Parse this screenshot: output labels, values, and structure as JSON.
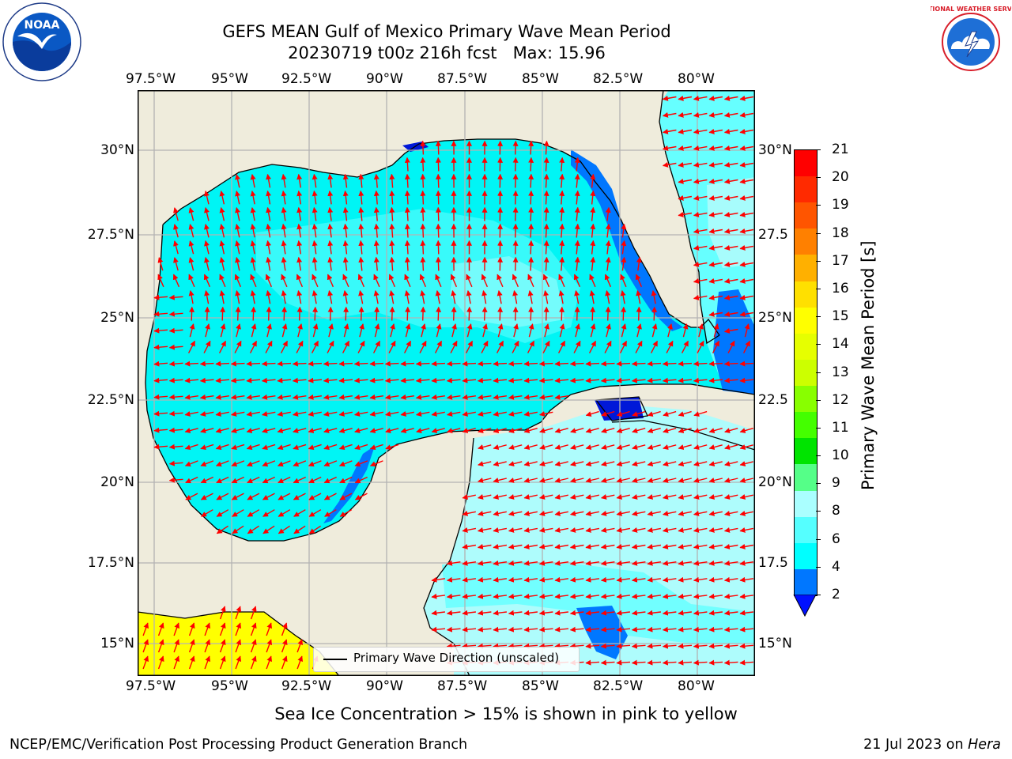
{
  "header": {
    "title_line1": "GEFS MEAN Gulf of Mexico Primary Wave Mean Period",
    "title_line2": "20230719 t00z 216h fcst   Max: 15.96"
  },
  "logos": {
    "left": {
      "name": "NOAA",
      "ring_text": "NATIONAL OCEANIC AND ATMOSPHERIC ADMINISTRATION · U.S. DEPARTMENT OF COMMERCE",
      "icon": "noaa-logo"
    },
    "right": {
      "ring_text": "NATIONAL WEATHER SERVICE",
      "icon": "nws-logo"
    }
  },
  "map": {
    "lon_ticks": [
      "97.5°W",
      "95°W",
      "92.5°W",
      "90°W",
      "87.5°W",
      "85°W",
      "82.5°W",
      "80°W"
    ],
    "lat_ticks_left": [
      "30°N",
      "27.5°N",
      "25°N",
      "22.5°N",
      "20°N",
      "17.5°N",
      "15°N"
    ],
    "lat_ticks_right": [
      "30°N",
      "27.5",
      "25°N",
      "22.5",
      "20°N",
      "17.5",
      "15°N"
    ],
    "legend_label": "Primary Wave Direction (unscaled)",
    "colors": {
      "land": "#efecdc",
      "ocean_mid": "#00f5f5",
      "ocean_light": "#66ffff",
      "ocean_pale": "#aefcfc",
      "ocean_dark": "#0077ff",
      "ocean_navy": "#0018d8",
      "ice": "#ffff00",
      "arrow": "#ff0000",
      "grid": "#b3b3b3"
    }
  },
  "colorbar": {
    "label": "Primary Wave Mean Period [s]",
    "tick_labels": [
      "21",
      "20",
      "19",
      "18",
      "17",
      "16",
      "15",
      "14",
      "13",
      "12",
      "11",
      "10",
      "9",
      "8",
      "6",
      "4",
      "2"
    ],
    "colors_top_to_bottom": [
      "#ff0000",
      "#ff2a00",
      "#ff5500",
      "#ff8000",
      "#ffb000",
      "#ffe000",
      "#ffff00",
      "#e6ff00",
      "#ccff00",
      "#88ff00",
      "#44ff00",
      "#00e400",
      "#55ff88",
      "#aaffff",
      "#55ffff",
      "#00ffff",
      "#0077ff"
    ],
    "extend_color": "#0010ff"
  },
  "notes": {
    "sea_ice": "Sea Ice Concentration > 15% is shown in pink to yellow",
    "footer_left": "NCEP/EMC/Verification Post Processing Product Generation Branch",
    "footer_right_date": "21 Jul 2023 on ",
    "footer_right_host": "Hera"
  }
}
